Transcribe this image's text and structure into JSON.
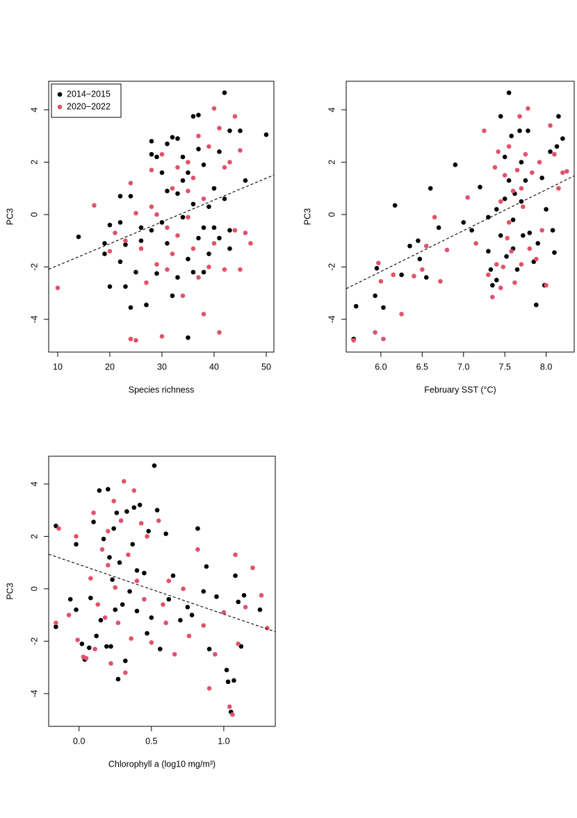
{
  "chart_data": [
    {
      "type": "scatter",
      "xlabel": "Species richness",
      "ylabel": "PC3",
      "xlim": [
        8.27,
        51.47
      ],
      "ylim": [
        -5.25,
        5.09
      ],
      "xticks": [
        10,
        20,
        30,
        40,
        50
      ],
      "yticks": [
        -4,
        -2,
        0,
        2,
        4
      ],
      "legend": "topleft",
      "trend": {
        "x": [
          8.27,
          51.47
        ],
        "y": [
          -2.09,
          1.51
        ]
      },
      "series": [
        {
          "name": "2014−2015",
          "color": "#000000",
          "x": [
            14,
            19,
            19,
            20,
            20,
            22,
            22,
            22,
            23,
            23,
            24,
            24,
            25,
            26,
            27,
            28,
            28,
            28,
            29,
            30,
            30,
            31,
            31,
            32,
            32,
            33,
            33,
            33,
            34,
            34,
            35,
            35,
            35,
            36,
            36,
            36,
            37,
            37,
            37,
            38,
            38,
            39,
            39,
            40,
            40,
            41,
            41,
            42,
            42,
            43,
            43,
            43,
            45,
            46,
            50,
            26,
            29,
            31,
            34,
            38
          ],
          "y": [
            -0.85,
            -1.1,
            -1.5,
            -2.75,
            -0.4,
            0.7,
            -0.3,
            -1.8,
            -1.15,
            -2.75,
            -3.55,
            0.7,
            -2.2,
            -0.5,
            -3.45,
            2.8,
            2.3,
            -0.6,
            2.2,
            1.6,
            -0.3,
            2.7,
            -1.1,
            2.95,
            -3.1,
            2.9,
            0.8,
            -2.4,
            2.2,
            -0.1,
            -4.7,
            1.6,
            -1.7,
            3.75,
            0.4,
            -2.2,
            2.5,
            -0.9,
            3.8,
            1.9,
            -2.2,
            0.3,
            -1.5,
            -0.5,
            1.0,
            -0.9,
            2.4,
            4.65,
            0.6,
            3.2,
            -1.3,
            -0.6,
            3.2,
            1.3,
            3.05,
            -1.0,
            -2.25,
            0.9,
            1.3,
            -0.5
          ]
        },
        {
          "name": "2020−2022",
          "color": "#DF536B",
          "x": [
            10,
            17,
            20,
            21,
            23,
            24,
            24,
            25,
            25,
            26,
            27,
            28,
            28,
            29,
            30,
            30,
            31,
            31,
            32,
            33,
            33,
            34,
            35,
            35,
            36,
            36,
            37,
            37,
            38,
            38,
            39,
            39,
            40,
            40,
            41,
            41,
            42,
            42,
            43,
            44,
            44,
            45,
            45,
            46,
            47,
            35,
            29,
            32
          ],
          "y": [
            -2.8,
            0.35,
            -1.4,
            -0.7,
            -1.0,
            1.2,
            -4.75,
            -4.8,
            0.05,
            -1.3,
            -2.6,
            1.7,
            0.3,
            -1.9,
            -4.65,
            2.3,
            -0.5,
            -2.1,
            1.0,
            -0.8,
            1.8,
            -3.1,
            2.0,
            -0.1,
            1.4,
            -1.3,
            3.0,
            -2.4,
            -3.8,
            0.6,
            2.6,
            -2.0,
            4.05,
            -1.1,
            -4.5,
            3.3,
            1.8,
            -2.1,
            2.0,
            3.75,
            -0.6,
            2.45,
            -2.1,
            -0.7,
            -1.1,
            0.9,
            0.0,
            -1.5
          ]
        }
      ]
    },
    {
      "type": "scatter",
      "xlabel": "February SST (°C)",
      "ylabel": "PC3",
      "xlim": [
        5.58,
        8.34
      ],
      "ylim": [
        -5.25,
        5.09
      ],
      "xticks": [
        {
          "value": 6,
          "label": "6.0"
        },
        {
          "value": 6.5,
          "label": "6.5"
        },
        {
          "value": 7,
          "label": "7.0"
        },
        {
          "value": 7.5,
          "label": "7.5"
        },
        {
          "value": 8,
          "label": "8.0"
        }
      ],
      "yticks": [
        -4,
        -2,
        0,
        2,
        4
      ],
      "trend": {
        "x": [
          5.58,
          8.34
        ],
        "y": [
          -2.83,
          1.48
        ]
      },
      "series": [
        {
          "color": "#000000",
          "x": [
            5.67,
            5.7,
            5.93,
            5.95,
            6.03,
            6.17,
            6.25,
            6.35,
            6.45,
            6.47,
            6.55,
            6.6,
            6.7,
            6.9,
            7.0,
            7.1,
            7.2,
            7.3,
            7.33,
            7.35,
            7.4,
            7.45,
            7.45,
            7.5,
            7.52,
            7.55,
            7.55,
            7.58,
            7.6,
            7.62,
            7.65,
            7.68,
            7.7,
            7.72,
            7.75,
            7.78,
            7.8,
            7.85,
            7.88,
            7.9,
            7.95,
            7.98,
            8.0,
            8.05,
            8.08,
            8.1,
            8.13,
            8.15,
            8.2,
            7.5,
            7.3,
            7.6,
            7.4,
            7.7
          ],
          "y": [
            -4.75,
            -3.5,
            -3.1,
            -2.05,
            -3.55,
            0.35,
            -2.3,
            -1.2,
            -1.0,
            -1.7,
            -2.4,
            1.0,
            -0.5,
            1.9,
            -0.3,
            -0.6,
            1.05,
            -1.4,
            -2.1,
            -2.7,
            0.2,
            3.75,
            -0.8,
            2.2,
            -1.6,
            4.65,
            1.3,
            3.0,
            -0.2,
            0.8,
            -2.1,
            3.2,
            2.0,
            -0.8,
            1.3,
            3.2,
            -0.7,
            -1.8,
            -3.45,
            -1.1,
            1.4,
            -2.7,
            0.2,
            2.4,
            -0.6,
            -1.45,
            2.6,
            3.75,
            2.9,
            0.6,
            -0.1,
            -1.3,
            -2.5,
            0.5
          ]
        },
        {
          "color": "#DF536B",
          "x": [
            5.67,
            5.93,
            5.97,
            6.0,
            6.03,
            6.15,
            6.25,
            6.4,
            6.5,
            6.55,
            6.65,
            6.72,
            6.8,
            7.05,
            7.15,
            7.25,
            7.3,
            7.35,
            7.38,
            7.4,
            7.42,
            7.45,
            7.48,
            7.5,
            7.53,
            7.55,
            7.58,
            7.6,
            7.62,
            7.65,
            7.68,
            7.7,
            7.72,
            7.75,
            7.78,
            7.8,
            7.83,
            7.88,
            7.92,
            7.95,
            8.0,
            8.05,
            8.1,
            8.15,
            8.2,
            8.25,
            7.45,
            7.55,
            7.7
          ],
          "y": [
            -4.8,
            -4.5,
            -1.85,
            -2.55,
            -4.75,
            -2.3,
            -3.8,
            -2.35,
            -2.1,
            -1.2,
            -0.1,
            -2.55,
            -1.35,
            0.65,
            -1.1,
            3.2,
            -2.3,
            -3.15,
            1.8,
            -1.9,
            2.4,
            0.5,
            -2.0,
            1.5,
            -0.9,
            2.6,
            -1.4,
            0.9,
            -2.6,
            1.7,
            3.75,
            -1.9,
            0.3,
            2.3,
            4.05,
            -1.3,
            1.6,
            -1.7,
            2.0,
            -0.6,
            -2.7,
            3.4,
            2.3,
            1.0,
            1.6,
            1.65,
            -2.8,
            -0.3,
            1.0
          ]
        }
      ]
    },
    {
      "type": "scatter",
      "xlabel": "Chlorophyll a (log10 mg/m³)",
      "ylabel": "PC3",
      "xlim": [
        -0.21,
        1.356
      ],
      "ylim": [
        -5.25,
        5.06
      ],
      "xticks": [
        {
          "value": 0,
          "label": "0.0"
        },
        {
          "value": 0.5,
          "label": "0.5"
        },
        {
          "value": 1,
          "label": "1.0"
        }
      ],
      "yticks": [
        -4,
        -2,
        0,
        2,
        4
      ],
      "trend": {
        "x": [
          -0.21,
          1.356
        ],
        "y": [
          1.32,
          -1.64
        ]
      },
      "series": [
        {
          "color": "#000000",
          "x": [
            -0.16,
            -0.16,
            -0.06,
            -0.02,
            -0.02,
            0.02,
            0.04,
            0.07,
            0.08,
            0.1,
            0.12,
            0.14,
            0.15,
            0.17,
            0.19,
            0.2,
            0.21,
            0.22,
            0.23,
            0.24,
            0.25,
            0.26,
            0.27,
            0.28,
            0.3,
            0.32,
            0.33,
            0.35,
            0.37,
            0.38,
            0.4,
            0.42,
            0.45,
            0.47,
            0.48,
            0.5,
            0.52,
            0.54,
            0.56,
            0.6,
            0.62,
            0.65,
            0.7,
            0.75,
            0.78,
            0.82,
            0.86,
            0.88,
            0.9,
            0.95,
            1.02,
            1.03,
            1.05,
            1.07,
            1.08,
            1.1,
            1.12,
            1.14,
            1.25,
            0.4
          ],
          "y": [
            2.4,
            -1.45,
            -0.4,
            1.7,
            -0.8,
            -2.1,
            -2.7,
            -2.25,
            -0.35,
            2.55,
            -1.8,
            3.75,
            -1.2,
            1.9,
            -2.2,
            3.8,
            1.2,
            -2.2,
            0.35,
            2.3,
            -0.8,
            2.9,
            -3.45,
            1.0,
            -0.6,
            -2.75,
            2.95,
            -0.1,
            1.7,
            3.1,
            -0.85,
            3.2,
            0.6,
            -1.7,
            2.2,
            -1.1,
            4.7,
            3.0,
            -2.3,
            2.1,
            -0.4,
            0.5,
            -1.2,
            -0.7,
            -1.0,
            2.3,
            -0.1,
            0.85,
            -2.3,
            -0.3,
            -3.1,
            -3.55,
            -4.7,
            -3.5,
            0.5,
            -0.5,
            -2.2,
            -0.25,
            -0.8,
            0.7
          ]
        },
        {
          "color": "#DF536B",
          "x": [
            -0.16,
            -0.14,
            -0.07,
            -0.02,
            -0.01,
            0.03,
            0.05,
            0.08,
            0.1,
            0.11,
            0.13,
            0.16,
            0.18,
            0.2,
            0.22,
            0.24,
            0.25,
            0.27,
            0.29,
            0.31,
            0.32,
            0.34,
            0.36,
            0.38,
            0.4,
            0.43,
            0.45,
            0.47,
            0.5,
            0.55,
            0.58,
            0.62,
            0.66,
            0.72,
            0.76,
            0.82,
            0.86,
            0.9,
            0.94,
            1.0,
            1.04,
            1.06,
            1.08,
            1.1,
            1.15,
            1.2,
            1.26,
            1.3,
            0.6,
            0.2
          ],
          "y": [
            -1.3,
            2.3,
            -1.0,
            2.0,
            -1.95,
            -2.6,
            -2.65,
            0.4,
            2.9,
            -2.3,
            -0.6,
            1.5,
            -1.1,
            2.2,
            -2.85,
            3.35,
            0.05,
            -1.3,
            2.6,
            4.1,
            -3.2,
            1.3,
            -1.9,
            3.75,
            0.3,
            2.5,
            -0.4,
            2.0,
            -2.05,
            2.6,
            -0.6,
            0.3,
            -2.5,
            0.0,
            -1.8,
            1.5,
            -1.4,
            -3.8,
            -2.5,
            -0.9,
            -4.5,
            -4.8,
            1.3,
            -2.1,
            -0.7,
            0.8,
            -0.25,
            -1.5,
            -1.3,
            0.9
          ]
        }
      ]
    }
  ]
}
